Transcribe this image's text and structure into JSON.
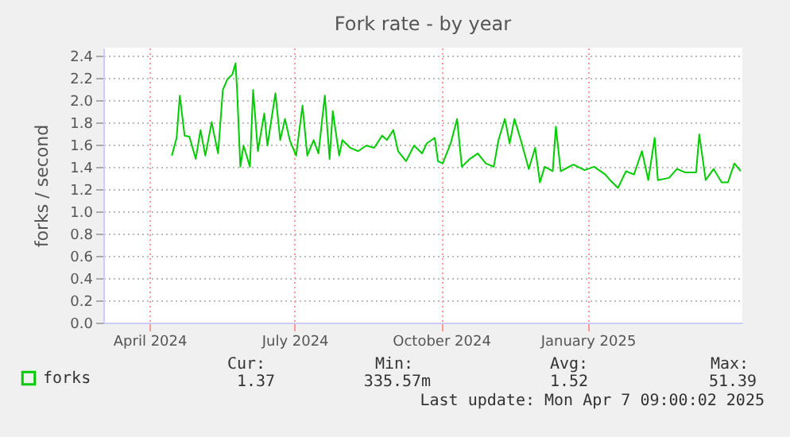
{
  "chart_data": {
    "type": "line",
    "title": "Fork rate - by year",
    "ylabel": "forks / second",
    "x": [
      "2024-04-15",
      "2024-04-18",
      "2024-04-20",
      "2024-04-23",
      "2024-04-26",
      "2024-04-30",
      "2024-05-03",
      "2024-05-06",
      "2024-05-10",
      "2024-05-14",
      "2024-05-17",
      "2024-05-20",
      "2024-05-23",
      "2024-05-25",
      "2024-05-26",
      "2024-05-28",
      "2024-05-30",
      "2024-06-03",
      "2024-06-05",
      "2024-06-08",
      "2024-06-12",
      "2024-06-14",
      "2024-06-16",
      "2024-06-19",
      "2024-06-22",
      "2024-06-25",
      "2024-06-28",
      "2024-07-02",
      "2024-07-06",
      "2024-07-09",
      "2024-07-13",
      "2024-07-16",
      "2024-07-20",
      "2024-07-23",
      "2024-07-25",
      "2024-07-29",
      "2024-07-31",
      "2024-08-05",
      "2024-08-10",
      "2024-08-15",
      "2024-08-20",
      "2024-08-25",
      "2024-08-28",
      "2024-09-01",
      "2024-09-04",
      "2024-09-09",
      "2024-09-14",
      "2024-09-19",
      "2024-09-22",
      "2024-09-27",
      "2024-09-29",
      "2024-10-02",
      "2024-10-07",
      "2024-10-11",
      "2024-10-14",
      "2024-10-19",
      "2024-10-24",
      "2024-10-29",
      "2024-11-03",
      "2024-11-06",
      "2024-11-10",
      "2024-11-13",
      "2024-11-16",
      "2024-11-20",
      "2024-11-25",
      "2024-11-29",
      "2024-12-02",
      "2024-12-05",
      "2024-12-10",
      "2024-12-12",
      "2024-12-15",
      "2024-12-23",
      "2024-12-30",
      "2025-01-05",
      "2025-01-12",
      "2025-01-15",
      "2025-01-20",
      "2025-01-25",
      "2025-01-30",
      "2025-02-04",
      "2025-02-08",
      "2025-02-12",
      "2025-02-14",
      "2025-02-21",
      "2025-02-26",
      "2025-03-03",
      "2025-03-10",
      "2025-03-12",
      "2025-03-16",
      "2025-03-21",
      "2025-03-26",
      "2025-03-30",
      "2025-04-03",
      "2025-04-07"
    ],
    "series": [
      {
        "name": "forks",
        "color": "#00cc00",
        "values": [
          1.5,
          1.66,
          2.04,
          1.68,
          1.67,
          1.47,
          1.73,
          1.5,
          1.8,
          1.52,
          2.09,
          2.19,
          2.23,
          2.33,
          2.07,
          1.4,
          1.59,
          1.4,
          2.09,
          1.54,
          1.88,
          1.59,
          1.78,
          2.06,
          1.64,
          1.83,
          1.64,
          1.5,
          1.95,
          1.5,
          1.64,
          1.52,
          2.04,
          1.47,
          1.9,
          1.5,
          1.64,
          1.57,
          1.54,
          1.59,
          1.57,
          1.68,
          1.64,
          1.73,
          1.54,
          1.45,
          1.59,
          1.52,
          1.61,
          1.66,
          1.45,
          1.43,
          1.61,
          1.83,
          1.4,
          1.47,
          1.52,
          1.43,
          1.4,
          1.64,
          1.83,
          1.61,
          1.83,
          1.64,
          1.38,
          1.57,
          1.26,
          1.4,
          1.36,
          1.76,
          1.36,
          1.42,
          1.37,
          1.4,
          1.33,
          1.28,
          1.21,
          1.36,
          1.33,
          1.54,
          1.28,
          1.66,
          1.28,
          1.3,
          1.38,
          1.35,
          1.35,
          1.69,
          1.28,
          1.38,
          1.26,
          1.26,
          1.43,
          1.36
        ]
      }
    ],
    "xlim": [
      "2024-03-03",
      "2025-04-08"
    ],
    "xticks": [
      {
        "value": "2024-04-01",
        "label": "April 2024"
      },
      {
        "value": "2024-07-01",
        "label": "July 2024"
      },
      {
        "value": "2024-10-01",
        "label": "October 2024"
      },
      {
        "value": "2025-01-01",
        "label": "January 2025"
      }
    ],
    "ylim": [
      0,
      2.47
    ],
    "yticks": [
      {
        "value": 0,
        "label": "0.0"
      },
      {
        "value": 0.2,
        "label": "0.2"
      },
      {
        "value": 0.4,
        "label": "0.4"
      },
      {
        "value": 0.6,
        "label": "0.6"
      },
      {
        "value": 0.8,
        "label": "0.8"
      },
      {
        "value": 1.0,
        "label": "1.0"
      },
      {
        "value": 1.2,
        "label": "1.2"
      },
      {
        "value": 1.4,
        "label": "1.4"
      },
      {
        "value": 1.6,
        "label": "1.6"
      },
      {
        "value": 1.8,
        "label": "1.8"
      },
      {
        "value": 2.0,
        "label": "2.0"
      },
      {
        "value": 2.2,
        "label": "2.2"
      },
      {
        "value": 2.4,
        "label": "2.4"
      }
    ],
    "grid": true,
    "legend": "bottom left",
    "marker": "none",
    "line_style": "solid",
    "annotations": [
      "Cur:",
      "Min:",
      "Avg:",
      "Max:",
      "1.37",
      "335.57m",
      "1.52",
      "51.39",
      "Last update: Mon Apr  7 09:00:02 2025"
    ]
  }
}
